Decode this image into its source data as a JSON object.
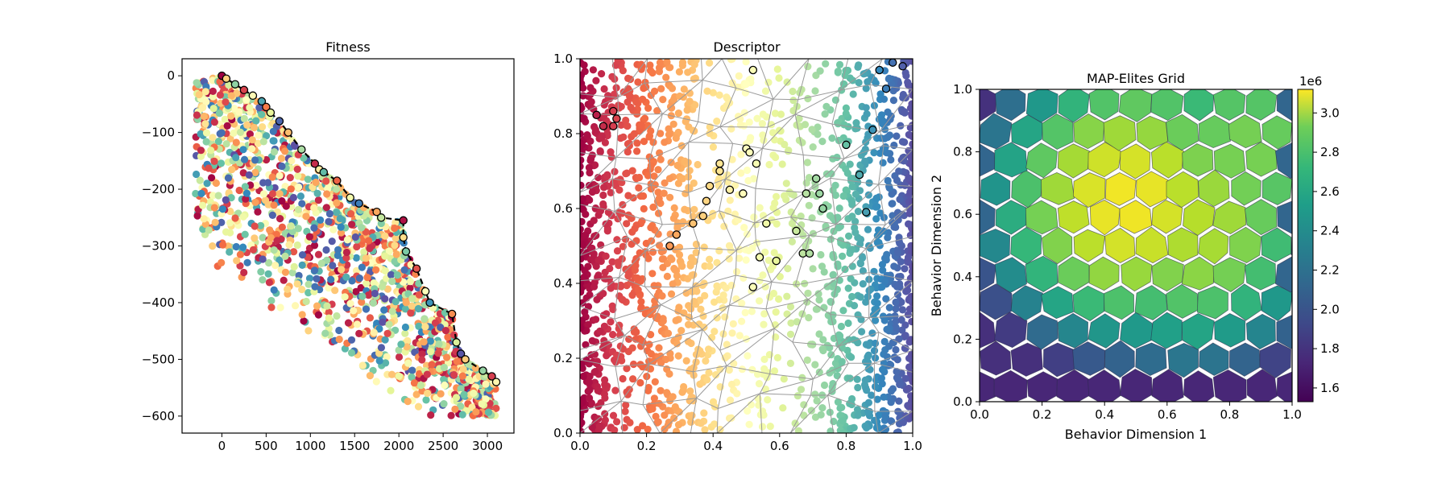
{
  "chart_data": [
    {
      "type": "scatter",
      "title": "Fitness",
      "xlabel": "",
      "ylabel": "",
      "xlim": [
        -450,
        3300
      ],
      "ylim": [
        -630,
        30
      ],
      "xticks": [
        "0",
        "500",
        "1000",
        "1500",
        "2000",
        "2500",
        "3000"
      ],
      "yticks": [
        "0",
        "−100",
        "−200",
        "−300",
        "−400",
        "−500",
        "−600"
      ],
      "xtick_values": [
        0,
        500,
        1000,
        1500,
        2000,
        2500,
        3000
      ],
      "ytick_values": [
        0,
        -100,
        -200,
        -300,
        -400,
        -500,
        -600
      ],
      "point_colormap": "Spectral",
      "point_cloud_extent": {
        "x": [
          -300,
          3100
        ],
        "y": [
          -600,
          0
        ]
      },
      "pareto_front": {
        "style": "black dashed line with hollow circles",
        "x": [
          0,
          50,
          150,
          250,
          350,
          450,
          500,
          550,
          650,
          750,
          900,
          1050,
          1100,
          1150,
          1300,
          1450,
          1550,
          1750,
          1800,
          2050,
          2050,
          2080,
          2200,
          2300,
          2350,
          2600,
          2650,
          2700,
          2750,
          2950,
          3050,
          3100
        ],
        "y": [
          0,
          -5,
          -15,
          -25,
          -35,
          -45,
          -55,
          -65,
          -80,
          -100,
          -130,
          -155,
          -165,
          -170,
          -185,
          -215,
          -225,
          -240,
          -250,
          -255,
          -285,
          -310,
          -340,
          -380,
          -400,
          -420,
          -470,
          -490,
          -500,
          -520,
          -530,
          -540
        ]
      }
    },
    {
      "type": "scatter",
      "title": "Descriptor",
      "xlabel": "",
      "ylabel": "",
      "xlim": [
        0,
        1
      ],
      "ylim": [
        0,
        1
      ],
      "xticks": [
        "0.0",
        "0.2",
        "0.4",
        "0.6",
        "0.8",
        "1.0"
      ],
      "yticks": [
        "0.0",
        "0.2",
        "0.4",
        "0.6",
        "0.8",
        "1.0"
      ],
      "tick_values": [
        0,
        0.2,
        0.4,
        0.6,
        0.8,
        1.0
      ],
      "point_colormap": "Spectral (by x)",
      "voronoi_overlay": true,
      "highlighted": {
        "x": [
          0.05,
          0.07,
          0.1,
          0.11,
          0.1,
          0.27,
          0.29,
          0.34,
          0.37,
          0.38,
          0.39,
          0.42,
          0.42,
          0.45,
          0.49,
          0.5,
          0.51,
          0.52,
          0.52,
          0.53,
          0.54,
          0.56,
          0.59,
          0.65,
          0.67,
          0.68,
          0.69,
          0.71,
          0.72,
          0.73,
          0.8,
          0.84,
          0.86,
          0.88,
          0.9,
          0.92,
          0.94,
          0.97
        ],
        "y": [
          0.85,
          0.82,
          0.86,
          0.84,
          0.82,
          0.5,
          0.53,
          0.56,
          0.58,
          0.62,
          0.66,
          0.72,
          0.7,
          0.65,
          0.64,
          0.76,
          0.75,
          0.39,
          0.97,
          0.72,
          0.47,
          0.56,
          0.46,
          0.54,
          0.48,
          0.64,
          0.48,
          0.68,
          0.64,
          0.6,
          0.77,
          0.69,
          0.59,
          0.81,
          0.97,
          0.92,
          0.99,
          0.98
        ]
      }
    },
    {
      "type": "heatmap",
      "title": "MAP-Elites Grid",
      "xlabel": "Behavior Dimension 1",
      "ylabel": "Behavior Dimension 2",
      "xlim": [
        0,
        1
      ],
      "ylim": [
        0,
        1
      ],
      "xticks": [
        "0.0",
        "0.2",
        "0.4",
        "0.6",
        "0.8",
        "1.0"
      ],
      "yticks": [
        "0.0",
        "0.2",
        "0.4",
        "0.6",
        "0.8",
        "1.0"
      ],
      "tick_values": [
        0,
        0.2,
        0.4,
        0.6,
        0.8,
        1.0
      ],
      "colormap": "viridis",
      "colorbar": {
        "multiplier": "1e6",
        "range": [
          1.53,
          3.12
        ],
        "ticks": [
          "1.6",
          "1.8",
          "2.0",
          "2.2",
          "2.4",
          "2.6",
          "2.8",
          "3.0"
        ],
        "tick_values": [
          1.6,
          1.8,
          2.0,
          2.2,
          2.4,
          2.6,
          2.8,
          3.0
        ]
      },
      "value_peaks": [
        {
          "x": 0.47,
          "y": 0.64,
          "value": 3.1
        },
        {
          "x": 0.68,
          "y": 0.57,
          "value": 2.95
        },
        {
          "x": 0.85,
          "y": 0.8,
          "value": 2.8
        },
        {
          "x": 0.5,
          "y": 0.78,
          "value": 2.85
        }
      ]
    }
  ]
}
